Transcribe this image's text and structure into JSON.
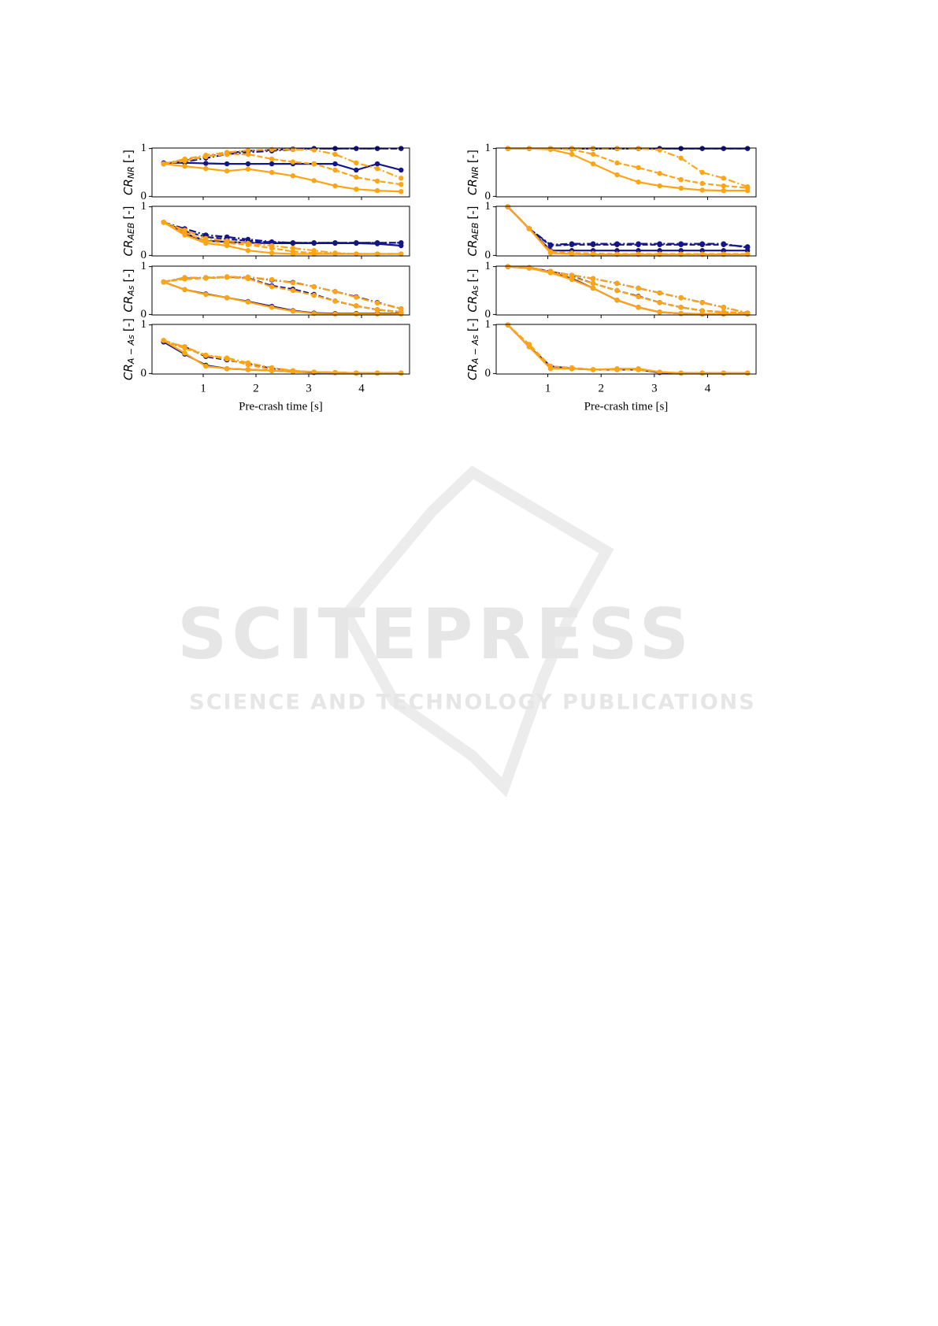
{
  "watermark": {
    "title": "SCITEPRESS",
    "subtitle": "SCIENCE AND TECHNOLOGY PUBLICATIONS"
  },
  "chart_data": [
    {
      "type": "line",
      "ylabel": {
        "main": "CR",
        "sub": "NR",
        "unit": "[-]"
      },
      "x": [
        0.25,
        0.65,
        1.05,
        1.45,
        1.85,
        2.3,
        2.7,
        3.1,
        3.5,
        3.9,
        4.3,
        4.75
      ],
      "xlim": [
        0.03,
        4.91
      ],
      "ylim": [
        -0.01,
        1.01
      ],
      "xticks": [
        1,
        2,
        3,
        4
      ],
      "yticks": [
        0,
        1
      ],
      "xtick_labels": false,
      "series": [
        {
          "color": "#15158a",
          "dash": "solid",
          "values": [
            0.7,
            0.7,
            0.69,
            0.68,
            0.68,
            0.68,
            0.68,
            0.68,
            0.68,
            0.55,
            0.68,
            0.55
          ]
        },
        {
          "color": "#15158a",
          "dash": "dashed",
          "values": [
            0.68,
            0.75,
            0.83,
            0.9,
            0.95,
            0.97,
            0.99,
            1,
            1,
            1,
            1,
            1
          ]
        },
        {
          "color": "#15158a",
          "dash": "dashdot",
          "values": [
            0.68,
            0.72,
            0.8,
            0.88,
            0.92,
            0.95,
            0.98,
            1,
            1,
            1,
            1,
            1
          ]
        },
        {
          "color": "#ffa515",
          "dash": "solid",
          "values": [
            0.68,
            0.63,
            0.58,
            0.53,
            0.57,
            0.5,
            0.43,
            0.33,
            0.22,
            0.15,
            0.12,
            0.1
          ]
        },
        {
          "color": "#ffa515",
          "dash": "dashed",
          "values": [
            0.68,
            0.74,
            0.83,
            0.88,
            0.88,
            0.78,
            0.72,
            0.68,
            0.55,
            0.4,
            0.32,
            0.25
          ]
        },
        {
          "color": "#ffa515",
          "dash": "dashdot",
          "values": [
            0.68,
            0.78,
            0.86,
            0.92,
            0.96,
            0.98,
            0.98,
            0.97,
            0.88,
            0.7,
            0.58,
            0.38
          ]
        }
      ]
    },
    {
      "type": "line",
      "ylabel": {
        "main": "CR",
        "sub": "AEB",
        "unit": "[-]"
      },
      "x": [
        0.25,
        0.65,
        1.05,
        1.45,
        1.85,
        2.3,
        2.7,
        3.1,
        3.5,
        3.9,
        4.3,
        4.75
      ],
      "xlim": [
        0.03,
        4.91
      ],
      "ylim": [
        -0.01,
        1.01
      ],
      "xticks": [
        1,
        2,
        3,
        4
      ],
      "yticks": [
        0,
        1
      ],
      "xtick_labels": false,
      "series": [
        {
          "color": "#15158a",
          "dash": "solid",
          "values": [
            0.68,
            0.45,
            0.3,
            0.28,
            0.26,
            0.25,
            0.25,
            0.25,
            0.25,
            0.25,
            0.24,
            0.2
          ]
        },
        {
          "color": "#15158a",
          "dash": "dashed",
          "values": [
            0.68,
            0.5,
            0.38,
            0.34,
            0.3,
            0.27,
            0.26,
            0.26,
            0.26,
            0.26,
            0.26,
            0.26
          ]
        },
        {
          "color": "#15158a",
          "dash": "dashdot",
          "values": [
            0.68,
            0.55,
            0.42,
            0.38,
            0.33,
            0.28,
            0.26,
            0.26,
            0.26,
            0.26,
            0.26,
            0.26
          ]
        },
        {
          "color": "#ffa515",
          "dash": "solid",
          "values": [
            0.68,
            0.42,
            0.25,
            0.2,
            0.1,
            0.05,
            0.03,
            0.03,
            0.03,
            0.03,
            0.03,
            0.03
          ]
        },
        {
          "color": "#ffa515",
          "dash": "dashed",
          "values": [
            0.68,
            0.47,
            0.3,
            0.25,
            0.22,
            0.15,
            0.08,
            0.05,
            0.04,
            0.03,
            0.03,
            0.03
          ]
        },
        {
          "color": "#ffa515",
          "dash": "dashdot",
          "values": [
            0.68,
            0.52,
            0.35,
            0.3,
            0.25,
            0.2,
            0.15,
            0.1,
            0.05,
            0.03,
            0.03,
            0.03
          ]
        }
      ]
    },
    {
      "type": "line",
      "ylabel": {
        "main": "CR",
        "sub": "As",
        "unit": "[-]"
      },
      "x": [
        0.25,
        0.65,
        1.05,
        1.45,
        1.85,
        2.3,
        2.7,
        3.1,
        3.5,
        3.9,
        4.3,
        4.75
      ],
      "xlim": [
        0.03,
        4.91
      ],
      "ylim": [
        -0.01,
        1.01
      ],
      "xticks": [
        1,
        2,
        3,
        4
      ],
      "yticks": [
        0,
        1
      ],
      "xtick_labels": false,
      "series": [
        {
          "color": "#15158a",
          "dash": "solid",
          "values": [
            0.68,
            0.52,
            0.43,
            0.35,
            0.27,
            0.17,
            0.08,
            0.03,
            0.02,
            0.02,
            0.02,
            0.02
          ]
        },
        {
          "color": "#15158a",
          "dash": "dashed",
          "values": [
            0.68,
            0.75,
            0.76,
            0.78,
            0.76,
            0.6,
            0.53,
            0.42,
            0.28,
            0.18,
            0.1,
            0.05
          ]
        },
        {
          "color": "#15158a",
          "dash": "dashdot",
          "values": [
            0.68,
            0.77,
            0.77,
            0.78,
            0.78,
            0.72,
            0.67,
            0.58,
            0.48,
            0.37,
            0.25,
            0.12
          ]
        },
        {
          "color": "#ffa515",
          "dash": "solid",
          "values": [
            0.68,
            0.52,
            0.42,
            0.35,
            0.26,
            0.15,
            0.07,
            0.02,
            0.01,
            0.01,
            0.01,
            0.01
          ]
        },
        {
          "color": "#ffa515",
          "dash": "dashed",
          "values": [
            0.68,
            0.74,
            0.76,
            0.78,
            0.75,
            0.58,
            0.5,
            0.4,
            0.28,
            0.18,
            0.1,
            0.05
          ]
        },
        {
          "color": "#ffa515",
          "dash": "dashdot",
          "values": [
            0.68,
            0.77,
            0.77,
            0.79,
            0.78,
            0.73,
            0.66,
            0.58,
            0.48,
            0.36,
            0.24,
            0.12
          ]
        }
      ]
    },
    {
      "type": "line",
      "ylabel": {
        "main": "CR",
        "sub": "A − As",
        "unit": "[-]"
      },
      "xlabel": "Pre-crash time [s]",
      "x": [
        0.25,
        0.65,
        1.05,
        1.45,
        1.85,
        2.3,
        2.7,
        3.1,
        3.5,
        3.9,
        4.3,
        4.75
      ],
      "xlim": [
        0.03,
        4.91
      ],
      "ylim": [
        -0.01,
        1.01
      ],
      "xticks": [
        1,
        2,
        3,
        4
      ],
      "yticks": [
        0,
        1
      ],
      "xtick_labels": true,
      "series": [
        {
          "color": "#15158a",
          "dash": "solid",
          "values": [
            0.65,
            0.4,
            0.17,
            0.1,
            0.08,
            0.06,
            0.04,
            0.02,
            0.02,
            0.01,
            0.01,
            0.01
          ]
        },
        {
          "color": "#15158a",
          "dash": "dashed",
          "values": [
            0.65,
            0.55,
            0.35,
            0.28,
            0.2,
            0.1,
            0.05,
            0.03,
            0.02,
            0.01,
            0.01,
            0.01
          ]
        },
        {
          "color": "#ffa515",
          "dash": "solid",
          "values": [
            0.68,
            0.42,
            0.15,
            0.1,
            0.08,
            0.06,
            0.04,
            0.03,
            0.02,
            0.01,
            0.01,
            0.01
          ]
        },
        {
          "color": "#ffa515",
          "dash": "dashed",
          "values": [
            0.68,
            0.52,
            0.37,
            0.3,
            0.18,
            0.08,
            0.05,
            0.03,
            0.02,
            0.01,
            0.01,
            0.01
          ]
        },
        {
          "color": "#ffa515",
          "dash": "dashdot",
          "values": [
            0.68,
            0.55,
            0.38,
            0.32,
            0.22,
            0.12,
            0.06,
            0.03,
            0.02,
            0.01,
            0.01,
            0.01
          ]
        }
      ]
    },
    {
      "type": "line",
      "ylabel": {
        "main": "CR",
        "sub": "NR",
        "unit": "[-]"
      },
      "x": [
        0.25,
        0.65,
        1.05,
        1.45,
        1.85,
        2.3,
        2.7,
        3.1,
        3.5,
        3.9,
        4.3,
        4.75
      ],
      "xlim": [
        0.03,
        4.91
      ],
      "ylim": [
        -0.01,
        1.01
      ],
      "xticks": [
        1,
        2,
        3,
        4
      ],
      "yticks": [
        0,
        1
      ],
      "xtick_labels": false,
      "series": [
        {
          "color": "#15158a",
          "dash": "solid",
          "values": [
            1,
            1,
            1,
            1,
            1,
            1,
            1,
            1,
            1,
            1,
            1,
            1
          ]
        },
        {
          "color": "#15158a",
          "dash": "dashed",
          "values": [
            1,
            1,
            1,
            1,
            1,
            1,
            1,
            1,
            1,
            1,
            1,
            1
          ]
        },
        {
          "color": "#ffa515",
          "dash": "solid",
          "values": [
            1,
            1,
            0.98,
            0.88,
            0.68,
            0.45,
            0.3,
            0.22,
            0.17,
            0.13,
            0.12,
            0.12
          ]
        },
        {
          "color": "#ffa515",
          "dash": "dashed",
          "values": [
            1,
            1,
            1,
            0.98,
            0.88,
            0.7,
            0.6,
            0.48,
            0.35,
            0.27,
            0.22,
            0.18
          ]
        },
        {
          "color": "#ffa515",
          "dash": "dashdot",
          "values": [
            1,
            1,
            1,
            1,
            1,
            1,
            1,
            0.97,
            0.8,
            0.5,
            0.38,
            0.2
          ]
        }
      ]
    },
    {
      "type": "line",
      "ylabel": {
        "main": "CR",
        "sub": "AEB",
        "unit": "[-]"
      },
      "x": [
        0.25,
        0.65,
        1.05,
        1.45,
        1.85,
        2.3,
        2.7,
        3.1,
        3.5,
        3.9,
        4.3,
        4.75
      ],
      "xlim": [
        0.03,
        4.91
      ],
      "ylim": [
        -0.01,
        1.01
      ],
      "xticks": [
        1,
        2,
        3,
        4
      ],
      "yticks": [
        0,
        1
      ],
      "xtick_labels": false,
      "series": [
        {
          "color": "#15158a",
          "dash": "solid",
          "values": [
            1,
            0.55,
            0.1,
            0.1,
            0.1,
            0.1,
            0.1,
            0.1,
            0.1,
            0.1,
            0.1,
            0.1
          ]
        },
        {
          "color": "#15158a",
          "dash": "dashed",
          "values": [
            1,
            0.55,
            0.2,
            0.22,
            0.22,
            0.22,
            0.22,
            0.22,
            0.22,
            0.22,
            0.22,
            0.18
          ]
        },
        {
          "color": "#15158a",
          "dash": "dashdot",
          "values": [
            1,
            0.55,
            0.22,
            0.24,
            0.24,
            0.24,
            0.24,
            0.24,
            0.24,
            0.24,
            0.24,
            0.16
          ]
        },
        {
          "color": "#ffa515",
          "dash": "solid",
          "values": [
            1,
            0.55,
            0.05,
            0.03,
            0.02,
            0.02,
            0.02,
            0.02,
            0.02,
            0.02,
            0.02,
            0.02
          ]
        },
        {
          "color": "#ffa515",
          "dash": "dashed",
          "values": [
            1,
            0.55,
            0.08,
            0.05,
            0.04,
            0.03,
            0.03,
            0.03,
            0.03,
            0.03,
            0.03,
            0.03
          ]
        }
      ]
    },
    {
      "type": "line",
      "ylabel": {
        "main": "CR",
        "sub": "As",
        "unit": "[-]"
      },
      "x": [
        0.25,
        0.65,
        1.05,
        1.45,
        1.85,
        2.3,
        2.7,
        3.1,
        3.5,
        3.9,
        4.3,
        4.75
      ],
      "xlim": [
        0.03,
        4.91
      ],
      "ylim": [
        -0.01,
        1.01
      ],
      "xticks": [
        1,
        2,
        3,
        4
      ],
      "yticks": [
        0,
        1
      ],
      "xtick_labels": false,
      "series": [
        {
          "color": "#15158a",
          "dash": "solid",
          "values": [
            1,
            0.97,
            0.88,
            0.75,
            0.55,
            0.3,
            0.15,
            0.05,
            0.02,
            0.01,
            0.01,
            0.01
          ]
        },
        {
          "color": "#15158a",
          "dash": "dashed",
          "values": [
            1,
            0.98,
            0.9,
            0.8,
            0.65,
            0.5,
            0.38,
            0.25,
            0.15,
            0.08,
            0.05,
            0.03
          ]
        },
        {
          "color": "#15158a",
          "dash": "dashdot",
          "values": [
            1,
            0.98,
            0.9,
            0.82,
            0.75,
            0.65,
            0.55,
            0.45,
            0.35,
            0.25,
            0.15,
            0.03
          ]
        },
        {
          "color": "#ffa515",
          "dash": "solid",
          "values": [
            1,
            0.97,
            0.87,
            0.73,
            0.55,
            0.3,
            0.15,
            0.05,
            0.02,
            0.01,
            0.01,
            0.01
          ]
        },
        {
          "color": "#ffa515",
          "dash": "dashed",
          "values": [
            1,
            0.98,
            0.88,
            0.78,
            0.65,
            0.5,
            0.37,
            0.25,
            0.15,
            0.08,
            0.05,
            0.03
          ]
        },
        {
          "color": "#ffa515",
          "dash": "dashdot",
          "values": [
            1,
            0.98,
            0.9,
            0.82,
            0.75,
            0.65,
            0.55,
            0.45,
            0.35,
            0.25,
            0.15,
            0.03
          ]
        }
      ]
    },
    {
      "type": "line",
      "ylabel": {
        "main": "CR",
        "sub": "A − As",
        "unit": "[-]"
      },
      "xlabel": "Pre-crash time [s]",
      "x": [
        0.25,
        0.65,
        1.05,
        1.45,
        1.85,
        2.3,
        2.7,
        3.1,
        3.5,
        3.9,
        4.3,
        4.75
      ],
      "xlim": [
        0.03,
        4.91
      ],
      "ylim": [
        -0.01,
        1.01
      ],
      "xticks": [
        1,
        2,
        3,
        4
      ],
      "yticks": [
        0,
        1
      ],
      "xtick_labels": true,
      "series": [
        {
          "color": "#15158a",
          "dash": "solid",
          "values": [
            1,
            0.55,
            0.15,
            0.1,
            0.08,
            0.08,
            0.08,
            0.02,
            0.01,
            0.01,
            0.01,
            0.01
          ]
        },
        {
          "color": "#ffa515",
          "dash": "solid",
          "values": [
            1,
            0.55,
            0.1,
            0.1,
            0.08,
            0.1,
            0.1,
            0.03,
            0.01,
            0.01,
            0.01,
            0.01
          ]
        },
        {
          "color": "#ffa515",
          "dash": "dashed",
          "values": [
            1,
            0.6,
            0.15,
            0.12,
            0.08,
            0.08,
            0.08,
            0.03,
            0.01,
            0.01,
            0.01,
            0.01
          ]
        }
      ]
    }
  ]
}
